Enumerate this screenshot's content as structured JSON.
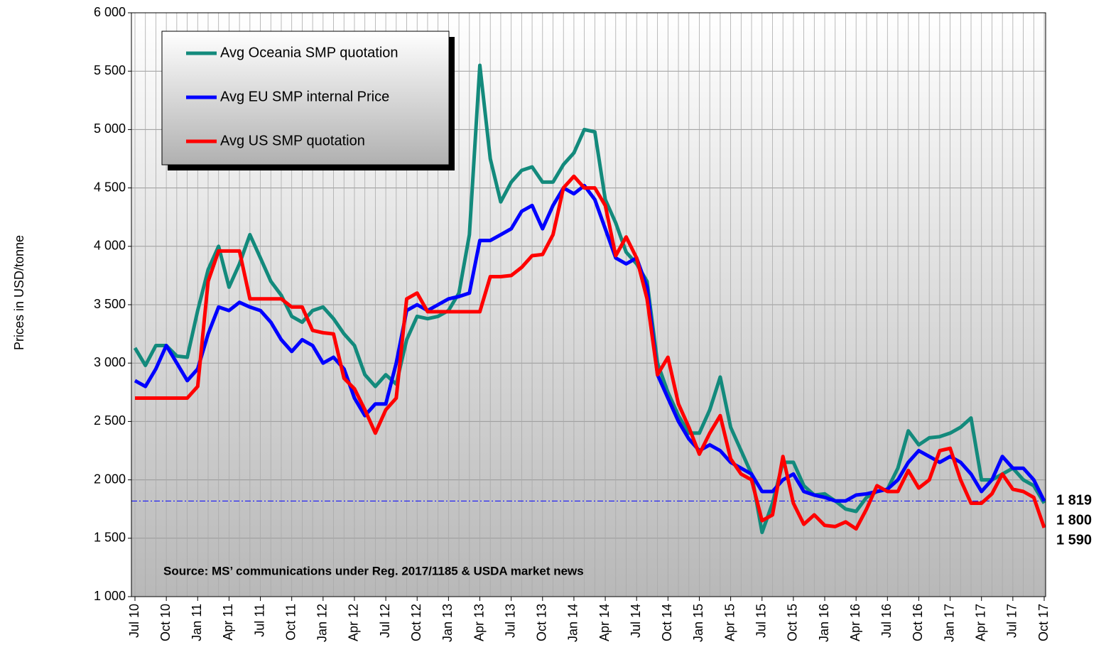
{
  "chart_data": {
    "type": "line",
    "y_axis_label": "Prices in USD/tonne",
    "annotation": "Source: MS’ communications  under Reg. 2017/1185 & USDA market news",
    "categories": [
      "Jul 10",
      null,
      null,
      "Oct 10",
      null,
      null,
      "Jan 11",
      null,
      null,
      "Apr 11",
      null,
      null,
      "Jul 11",
      null,
      null,
      "Oct 11",
      null,
      null,
      "Jan 12",
      null,
      null,
      "Apr 12",
      null,
      null,
      "Jul 12",
      null,
      null,
      "Oct 12",
      null,
      null,
      "Jan 13",
      null,
      null,
      "Apr 13",
      null,
      null,
      "Jul 13",
      null,
      null,
      "Oct 13",
      null,
      null,
      "Jan 14",
      null,
      null,
      "Apr 14",
      null,
      null,
      "Jul 14",
      null,
      null,
      "Oct 14",
      null,
      null,
      "Jan 15",
      null,
      null,
      "Apr 15",
      null,
      null,
      "Jul 15",
      null,
      null,
      "Oct 15",
      null,
      null,
      "Jan 16",
      null,
      null,
      "Apr 16",
      null,
      null,
      "Jul 16",
      null,
      null,
      "Oct 16",
      null,
      null,
      "Jan 17",
      null,
      null,
      "Apr 17",
      null,
      null,
      "Jul 17",
      null,
      null,
      "Oct 17"
    ],
    "series": [
      {
        "name": "Avg Oceania SMP quotation",
        "color": "#138a7c",
        "values": [
          3130,
          2980,
          3150,
          3150,
          3060,
          3050,
          3450,
          3800,
          4000,
          3650,
          3850,
          4100,
          3900,
          3700,
          3580,
          3400,
          3350,
          3450,
          3480,
          3380,
          3250,
          3150,
          2900,
          2800,
          2900,
          2820,
          3200,
          3400,
          3380,
          3400,
          3450,
          3600,
          4100,
          5550,
          4750,
          4380,
          4550,
          4650,
          4680,
          4550,
          4550,
          4700,
          4800,
          5000,
          4980,
          4400,
          4200,
          3950,
          3850,
          3700,
          3000,
          2750,
          2550,
          2400,
          2400,
          2600,
          2880,
          2450,
          2250,
          2050,
          1550,
          1800,
          2150,
          2150,
          1950,
          1870,
          1880,
          1820,
          1750,
          1730,
          1850,
          1900,
          1920,
          2100,
          2420,
          2300,
          2360,
          2370,
          2400,
          2450,
          2530,
          2000,
          2000,
          2050,
          2100,
          2000,
          1950,
          1800
        ]
      },
      {
        "name": "Avg EU SMP internal Price",
        "color": "#0000ff",
        "values": [
          2850,
          2800,
          2950,
          3150,
          3000,
          2850,
          2950,
          3250,
          3480,
          3450,
          3520,
          3480,
          3450,
          3350,
          3200,
          3100,
          3200,
          3150,
          3000,
          3050,
          2950,
          2700,
          2550,
          2650,
          2650,
          3000,
          3450,
          3500,
          3450,
          3500,
          3550,
          3570,
          3600,
          4050,
          4050,
          4100,
          4150,
          4300,
          4350,
          4150,
          4350,
          4500,
          4450,
          4520,
          4400,
          4150,
          3900,
          3850,
          3900,
          3650,
          2900,
          2700,
          2500,
          2350,
          2250,
          2300,
          2250,
          2150,
          2100,
          2050,
          1900,
          1900,
          2000,
          2050,
          1900,
          1870,
          1850,
          1820,
          1820,
          1870,
          1880,
          1900,
          1920,
          2000,
          2150,
          2250,
          2200,
          2150,
          2200,
          2150,
          2050,
          1900,
          2000,
          2200,
          2100,
          2100,
          2000,
          1819
        ]
      },
      {
        "name": "Avg US SMP quotation",
        "color": "#ff0000",
        "values": [
          2700,
          2700,
          2700,
          2700,
          2700,
          2700,
          2800,
          3700,
          3960,
          3960,
          3960,
          3550,
          3550,
          3550,
          3550,
          3480,
          3480,
          3280,
          3260,
          3250,
          2870,
          2780,
          2600,
          2400,
          2600,
          2700,
          3550,
          3600,
          3440,
          3440,
          3440,
          3440,
          3440,
          3440,
          3740,
          3740,
          3750,
          3820,
          3920,
          3930,
          4100,
          4500,
          4600,
          4500,
          4500,
          4350,
          3920,
          4080,
          3900,
          3550,
          2900,
          3050,
          2650,
          2450,
          2220,
          2400,
          2550,
          2180,
          2050,
          2000,
          1650,
          1700,
          2200,
          1800,
          1620,
          1700,
          1610,
          1600,
          1640,
          1580,
          1750,
          1950,
          1900,
          1900,
          2080,
          1930,
          2000,
          2250,
          2270,
          2000,
          1800,
          1800,
          1880,
          2050,
          1920,
          1900,
          1850,
          1590
        ]
      }
    ],
    "reference_line": {
      "value": 1819,
      "color": "#0000ff"
    },
    "end_labels": [
      {
        "label": "1 819",
        "value": 1819,
        "color": "#0000ff"
      },
      {
        "label": "1 800",
        "value": 1800,
        "color": "#556b2f"
      },
      {
        "label": "1 590",
        "value": 1590,
        "color": "#ff0000"
      }
    ],
    "ylim": [
      1000,
      6000
    ],
    "yticks": [
      {
        "value": 1000,
        "label": "1 000"
      },
      {
        "value": 1500,
        "label": "1 500"
      },
      {
        "value": 2000,
        "label": "2 000"
      },
      {
        "value": 2500,
        "label": "2 500"
      },
      {
        "value": 3000,
        "label": "3 000"
      },
      {
        "value": 3500,
        "label": "3 500"
      },
      {
        "value": 4000,
        "label": "4 000"
      },
      {
        "value": 4500,
        "label": "4 500"
      },
      {
        "value": 5000,
        "label": "5 000"
      },
      {
        "value": 5500,
        "label": "5 500"
      },
      {
        "value": 6000,
        "label": "6 000"
      }
    ],
    "grid": true,
    "legend": "upper left"
  }
}
